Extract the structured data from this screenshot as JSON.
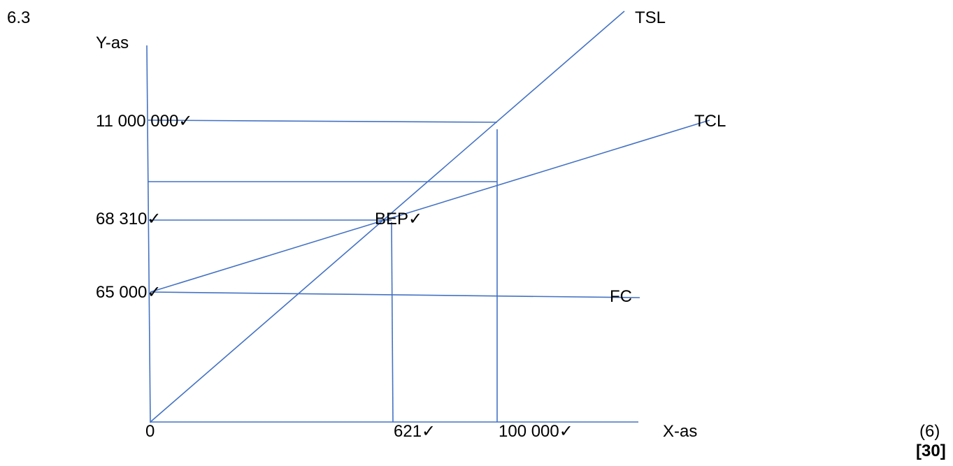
{
  "question": {
    "number": "6.3"
  },
  "axes": {
    "y_label": "Y-as",
    "x_label": "X-as"
  },
  "y_ticks": {
    "top": "11 000 000✓",
    "middle": "68 310✓",
    "lower": "65 000✓"
  },
  "x_ticks": {
    "origin": "0",
    "bep_quantity": "621✓",
    "max_quantity": "100 000✓"
  },
  "line_labels": {
    "tsl": "TSL",
    "tcl": "TCL",
    "fc": "FC",
    "bep": "BEP✓"
  },
  "marks": {
    "sub": "(6)",
    "total": "[30]"
  },
  "line_color": "#4472c4"
}
